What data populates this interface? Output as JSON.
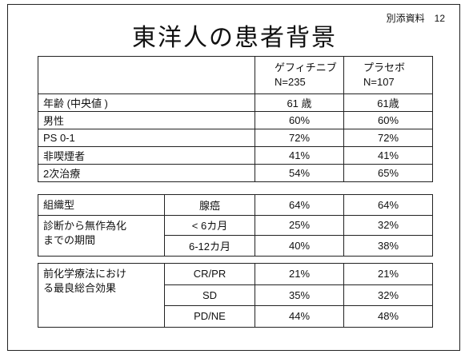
{
  "header": {
    "title": "東洋人の患者背景",
    "reference": "別添資料　12"
  },
  "table": {
    "columns": [
      {
        "name": "ゲフィチニブ",
        "n": "N=235"
      },
      {
        "name": "プラセボ",
        "n": "N=107"
      }
    ],
    "rows": [
      {
        "label": "年齢 (中央値 )",
        "values": [
          "61 歳",
          "61歳"
        ]
      },
      {
        "label": "男性",
        "values": [
          "60%",
          "60%"
        ]
      },
      {
        "label": "PS 0-1",
        "values": [
          "72%",
          "72%"
        ]
      },
      {
        "label": "非喫煙者",
        "values": [
          "41%",
          "41%"
        ]
      },
      {
        "label": "2次治療",
        "values": [
          "54%",
          "65%"
        ]
      }
    ],
    "sections": [
      {
        "groups": [
          {
            "label": [
              "組織型"
            ],
            "rows": [
              {
                "sub": "腺癌",
                "values": [
                  "64%",
                  "64%"
                ]
              }
            ]
          },
          {
            "label": [
              "診断から無作為化",
              "までの期間"
            ],
            "rows": [
              {
                "sub": "< 6カ月",
                "values": [
                  "25%",
                  "32%"
                ]
              },
              {
                "sub": "6-12カ月",
                "values": [
                  "40%",
                  "38%"
                ]
              }
            ]
          }
        ]
      },
      {
        "groups": [
          {
            "label": [
              "前化学療法におけ",
              "る最良総合効果"
            ],
            "rows": [
              {
                "sub": "CR/PR",
                "values": [
                  "21%",
                  "21%"
                ]
              },
              {
                "sub": "SD",
                "values": [
                  "35%",
                  "32%"
                ]
              },
              {
                "sub": "PD/NE",
                "values": [
                  "44%",
                  "48%"
                ]
              }
            ]
          }
        ]
      }
    ]
  }
}
